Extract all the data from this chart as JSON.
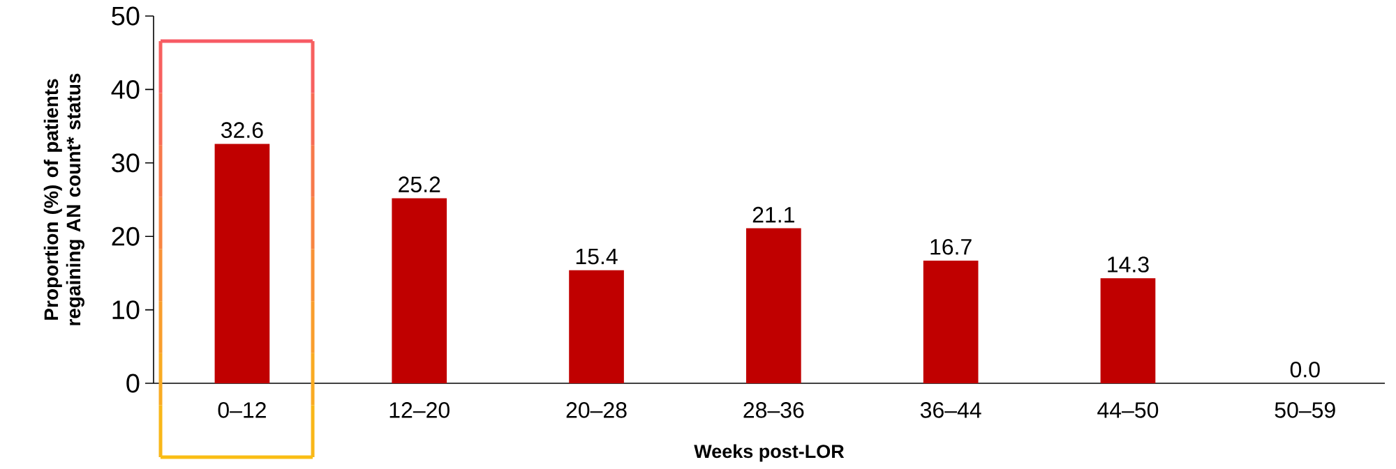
{
  "chart_data": {
    "type": "bar",
    "xlabel": "Weeks post-LOR",
    "ylabel": "Proportion (%) of patients regaining AN count* status",
    "categories": [
      "0–12",
      "12–20",
      "20–28",
      "28–36",
      "36–44",
      "44–50",
      "50–59"
    ],
    "values": [
      32.6,
      25.2,
      15.4,
      21.1,
      16.7,
      14.3,
      0.0
    ],
    "value_labels": [
      "32.6",
      "25.2",
      "15.4",
      "21.1",
      "16.7",
      "14.3",
      "0.0"
    ],
    "color": "#c00000",
    "ylim": [
      0,
      50
    ],
    "yticks": [
      0,
      10,
      20,
      30,
      40,
      50
    ],
    "grid": false
  }
}
